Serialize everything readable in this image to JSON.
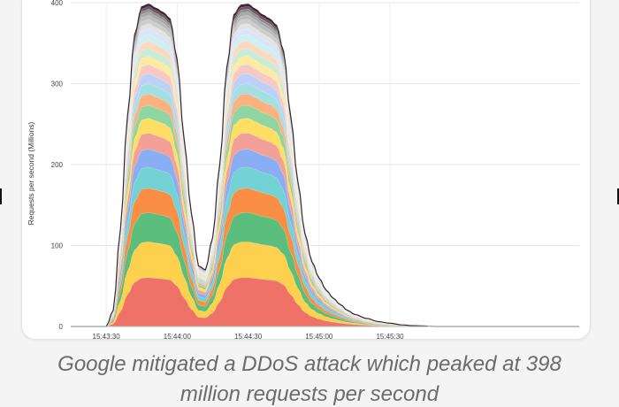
{
  "chart_data": {
    "type": "area",
    "stacked": true,
    "ylabel": "Requests per second (Millions)",
    "xlabel": "",
    "title": "",
    "ylim": [
      0,
      400
    ],
    "yticks": [
      0,
      100,
      200,
      300,
      400
    ],
    "xticks": [
      "15:43:30",
      "15:44:00",
      "15:44:30",
      "15:45:00",
      "15:45:30"
    ],
    "grid": true,
    "legend": "none",
    "total_peak": 398,
    "total_profile": {
      "x_seconds_after_15_43_30": [
        -5,
        0,
        3,
        6,
        9,
        12,
        15,
        18,
        21,
        24,
        27,
        30,
        33,
        36,
        39,
        42,
        45,
        48,
        51,
        54,
        57,
        60,
        63,
        66,
        69,
        72,
        75,
        78,
        81,
        84,
        87,
        90,
        93,
        96,
        99,
        102,
        105,
        110,
        115,
        120,
        125,
        130,
        140,
        150,
        160,
        170
      ],
      "total": [
        0,
        0,
        20,
        120,
        260,
        360,
        395,
        398,
        393,
        388,
        380,
        330,
        230,
        140,
        75,
        70,
        110,
        200,
        320,
        385,
        397,
        398,
        392,
        385,
        380,
        372,
        340,
        260,
        180,
        115,
        80,
        60,
        45,
        35,
        27,
        20,
        15,
        10,
        6,
        4,
        2,
        1,
        0,
        0,
        0,
        0
      ]
    },
    "series_colors": [
      "#ee7268",
      "#fdd04d",
      "#5cbe7d",
      "#f98e44",
      "#73d2d3",
      "#89aef3",
      "#f3a099",
      "#fede63",
      "#8ed5a1",
      "#fbb27f",
      "#a4e0e1",
      "#bcd0f8",
      "#f8c9c4",
      "#feeaa3",
      "#c9ecd4",
      "#fdd7bf",
      "#cfeff0",
      "#d9e5fb",
      "#e3e3e3",
      "#cdcdcd",
      "#bbbbbb",
      "#a7a7a7",
      "#8e8e8e",
      "#6a5560",
      "#4a2a3a"
    ],
    "series_share": [
      0.15,
      0.11,
      0.09,
      0.075,
      0.065,
      0.055,
      0.05,
      0.045,
      0.04,
      0.035,
      0.032,
      0.03,
      0.028,
      0.026,
      0.024,
      0.022,
      0.02,
      0.018,
      0.016,
      0.014,
      0.012,
      0.01,
      0.009,
      0.008,
      0.007
    ]
  },
  "caption": {
    "line1": "Google mitigated a DDoS attack which peaked at 398",
    "line2": "million requests per second"
  }
}
